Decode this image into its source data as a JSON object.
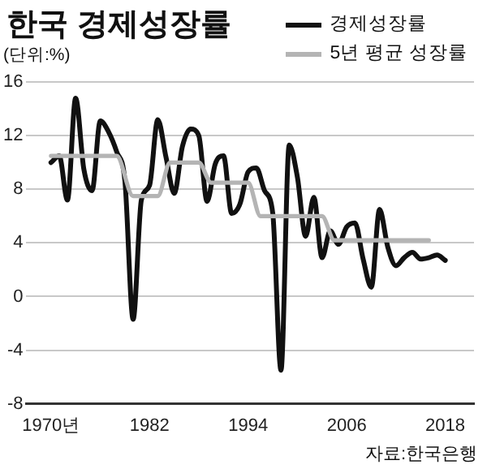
{
  "chart_data": {
    "type": "line",
    "title": "한국 경제성장률",
    "ylabel": "(단위:%)",
    "annotations": [
      "자료:한국은행"
    ],
    "xlim": [
      1967,
      2021.5
    ],
    "xticks": [
      {
        "value": 1970,
        "label": "1970년"
      },
      1982,
      1994,
      2006,
      2018
    ],
    "ylim": [
      -8,
      16
    ],
    "yticks": [
      -8,
      -4,
      0,
      4,
      8,
      12,
      16
    ],
    "grid": "y",
    "legend": "top right",
    "marker": "none",
    "line_style": "solid",
    "series": [
      {
        "name": "5년 평균 성장률",
        "color": "#b4b4b4",
        "x": [
          1970,
          1978,
          1980,
          1983,
          1984.5,
          1988,
          1989.5,
          1994,
          1995.5,
          2003,
          2004.5,
          2016
        ],
        "values": [
          10.5,
          10.5,
          7.5,
          7.5,
          10,
          10,
          8.5,
          8.5,
          6,
          6,
          4.2,
          4.2
        ]
      },
      {
        "name": "경제성장률",
        "color": "#111111",
        "x": [
          1970,
          1971,
          1972,
          1973,
          1974,
          1975,
          1976,
          1977,
          1978,
          1979,
          1980,
          1981,
          1982,
          1983,
          1984,
          1985,
          1986,
          1987,
          1988,
          1989,
          1990,
          1991,
          1992,
          1993,
          1994,
          1995,
          1996,
          1997,
          1998,
          1999,
          2000,
          2001,
          2002,
          2003,
          2004,
          2005,
          2006,
          2007,
          2008,
          2009,
          2010,
          2011,
          2012,
          2013,
          2014,
          2015,
          2016,
          2017,
          2018
        ],
        "values": [
          10.0,
          10.5,
          7.2,
          14.8,
          9.5,
          7.9,
          13.1,
          12.3,
          10.8,
          8.6,
          -1.7,
          7.2,
          8.3,
          13.2,
          10.4,
          7.7,
          11.2,
          12.5,
          12.0,
          7.1,
          9.9,
          10.5,
          6.2,
          6.9,
          9.3,
          9.6,
          7.9,
          6.2,
          -5.5,
          11.3,
          8.9,
          4.5,
          7.4,
          2.9,
          4.9,
          3.9,
          5.2,
          5.5,
          2.8,
          0.7,
          6.5,
          3.7,
          2.3,
          2.9,
          3.3,
          2.8,
          2.9,
          3.1,
          2.7
        ]
      }
    ]
  }
}
